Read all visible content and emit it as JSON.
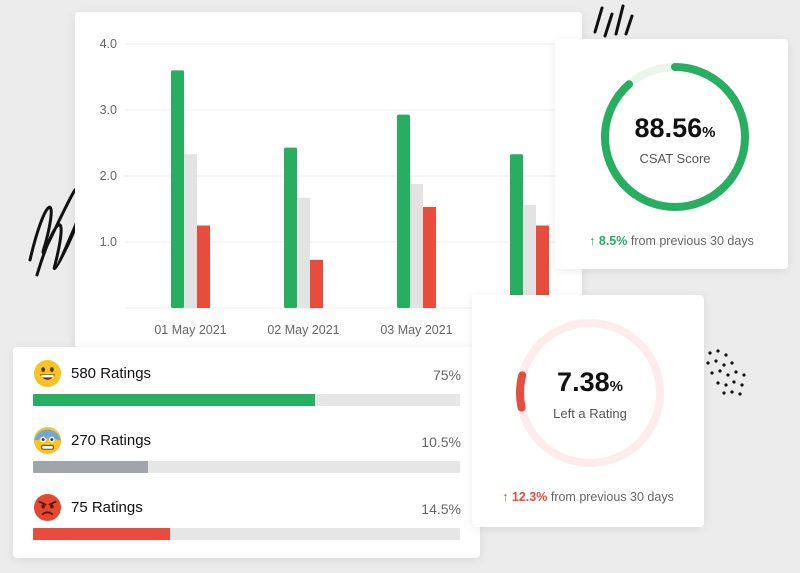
{
  "chart_data": {
    "type": "bar",
    "categories": [
      "01 May 2021",
      "02 May 2021",
      "03 May 2021",
      ""
    ],
    "series": [
      {
        "values": [
          3.6,
          2.43,
          2.93,
          2.33
        ],
        "color": "#27ae60"
      },
      {
        "values": [
          2.33,
          1.67,
          1.88,
          1.56
        ],
        "color": "#e3e3e3"
      },
      {
        "values": [
          1.25,
          0.73,
          1.53,
          1.25
        ],
        "color": "#e74c3c"
      }
    ],
    "ylim": [
      0,
      4.0
    ],
    "yticks": [
      "1.0",
      "2.0",
      "3.0",
      "4.0"
    ],
    "ytick_values": [
      1.0,
      2.0,
      3.0,
      4.0
    ],
    "grid": true
  },
  "csat": {
    "value": "88.56",
    "unit": "%",
    "caption": "CSAT Score",
    "fraction": 0.8856,
    "arrow": "↑",
    "change": "8.5%",
    "change_suffix": "from previous 30 days",
    "color": "#27ae60",
    "track_color": "#e8f6ec"
  },
  "left_rating": {
    "value": "7.38",
    "unit": "%",
    "caption": "Left a Rating",
    "fraction": 0.0738,
    "arrow": "↑",
    "change": "12.3%",
    "change_suffix": "from previous 30 days",
    "color": "#e74c3c",
    "track_color": "#fdeceb"
  },
  "ratings": [
    {
      "label": "580 Ratings",
      "percent": "75%",
      "fill_fraction": 0.66,
      "color": "#27ae60",
      "icon": "grinning-face-icon"
    },
    {
      "label": "270 Ratings",
      "percent": "10.5%",
      "fill_fraction": 0.27,
      "color": "#a0a4ab",
      "icon": "anxious-face-icon"
    },
    {
      "label": "75 Ratings",
      "percent": "14.5%",
      "fill_fraction": 0.32,
      "color": "#e74c3c",
      "icon": "angry-face-icon"
    }
  ]
}
